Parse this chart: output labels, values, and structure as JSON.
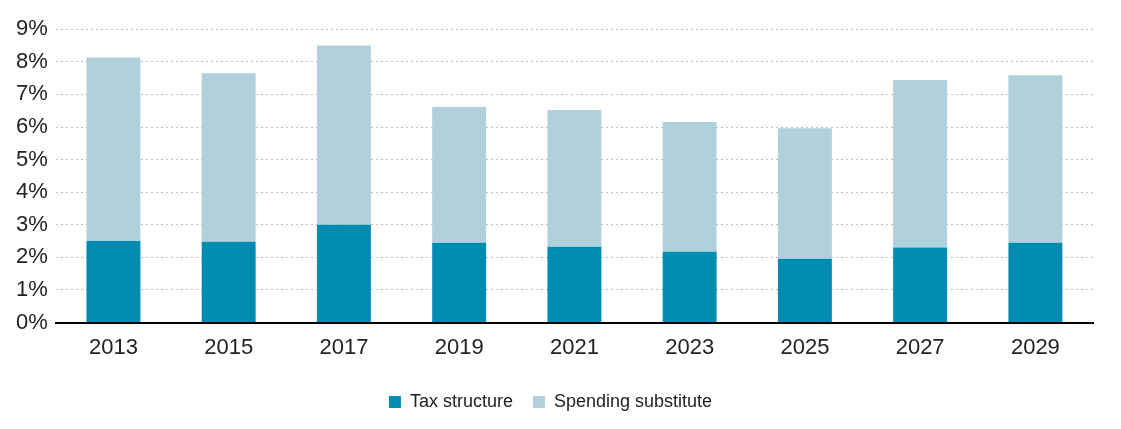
{
  "chart_data": {
    "type": "bar",
    "stacked": true,
    "categories": [
      "2013",
      "2015",
      "2017",
      "2019",
      "2021",
      "2023",
      "2025",
      "2027",
      "2029"
    ],
    "series": [
      {
        "name": "Tax structure",
        "color": "#008bb0",
        "values": [
          2.5,
          2.48,
          3.0,
          2.45,
          2.33,
          2.17,
          1.96,
          2.3,
          2.45
        ]
      },
      {
        "name": "Spending substitute",
        "color": "#b0d0db",
        "values": [
          5.63,
          5.17,
          5.5,
          4.16,
          4.19,
          3.98,
          4.0,
          5.14,
          5.14
        ]
      }
    ],
    "ylim": [
      0,
      9
    ],
    "yticks": [
      {
        "value": 0,
        "label": "0%"
      },
      {
        "value": 1,
        "label": "1%"
      },
      {
        "value": 2,
        "label": "2%"
      },
      {
        "value": 3,
        "label": "3%"
      },
      {
        "value": 4,
        "label": "4%"
      },
      {
        "value": 5,
        "label": "5%"
      },
      {
        "value": 6,
        "label": "6%"
      },
      {
        "value": 7,
        "label": "7%"
      },
      {
        "value": 8,
        "label": "8%"
      },
      {
        "value": 9,
        "label": "9%"
      }
    ],
    "grid": "y",
    "legend": "bottom"
  }
}
